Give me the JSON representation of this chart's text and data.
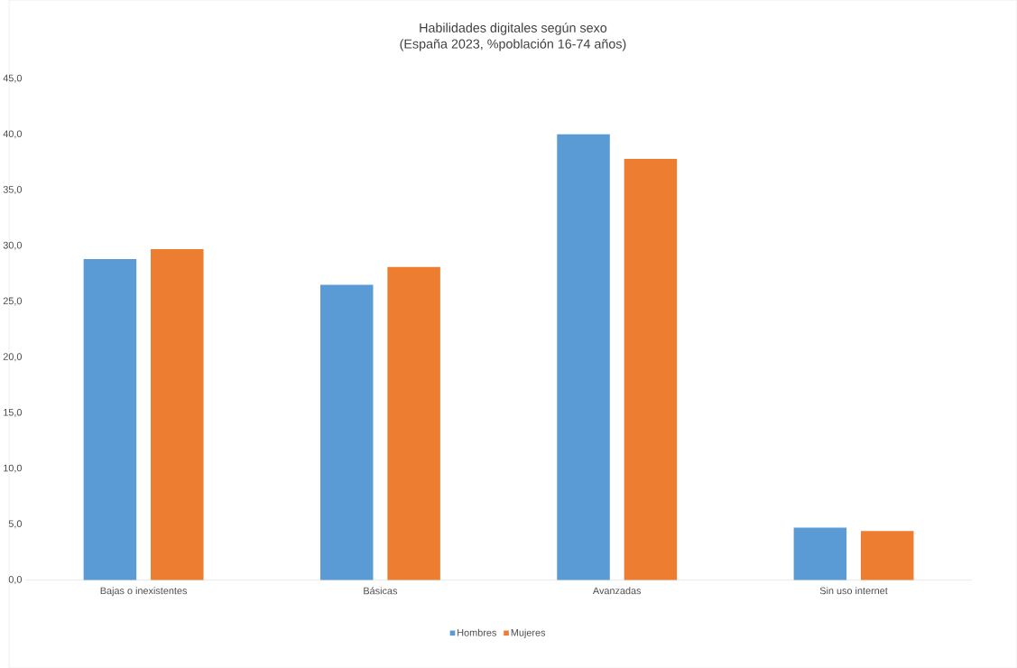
{
  "chart_data": {
    "type": "bar",
    "title": "Habilidades digitales según sexo",
    "subtitle": "(España 2023, %población 16-74 años)",
    "categories": [
      "Bajas o inexistentes",
      "Básicas",
      "Avanzadas",
      "Sin uso internet"
    ],
    "series": [
      {
        "name": "Hombres",
        "color": "#5b9bd5",
        "values": [
          28.8,
          26.5,
          40.0,
          4.7
        ]
      },
      {
        "name": "Mujeres",
        "color": "#ed7d31",
        "values": [
          29.7,
          28.1,
          37.8,
          4.4
        ]
      }
    ],
    "ylim": [
      0,
      45
    ],
    "yticks": [
      {
        "value": 0,
        "label": "0,0"
      },
      {
        "value": 5,
        "label": "5,0"
      },
      {
        "value": 10,
        "label": "10,0"
      },
      {
        "value": 15,
        "label": "15,0"
      },
      {
        "value": 20,
        "label": "20,0"
      },
      {
        "value": 25,
        "label": "25,0"
      },
      {
        "value": 30,
        "label": "30,0"
      },
      {
        "value": 35,
        "label": "35,0"
      },
      {
        "value": 40,
        "label": "40,0"
      },
      {
        "value": 45,
        "label": "45,0"
      }
    ],
    "legend": "bottom"
  }
}
